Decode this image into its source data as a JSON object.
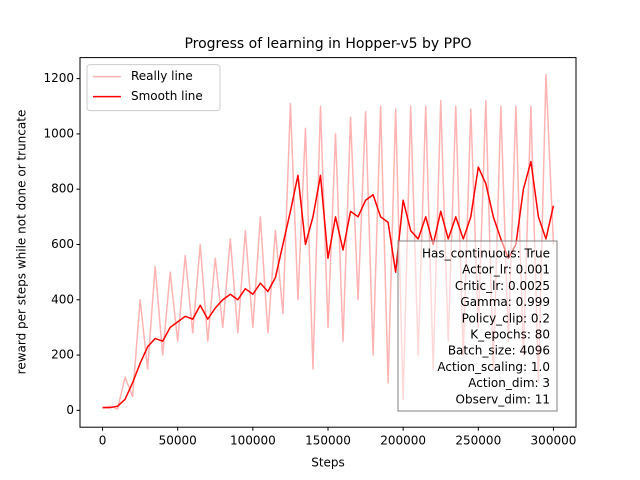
{
  "chart_data": {
    "type": "line",
    "title": "Progress of learning in Hopper-v5 by PPO",
    "x_label": "Steps",
    "y_label": "reward per steps while not done or truncate",
    "x": [
      0,
      5000,
      10000,
      15000,
      20000,
      25000,
      30000,
      35000,
      40000,
      45000,
      50000,
      55000,
      60000,
      65000,
      70000,
      75000,
      80000,
      85000,
      90000,
      95000,
      100000,
      105000,
      110000,
      115000,
      120000,
      125000,
      130000,
      135000,
      140000,
      145000,
      150000,
      155000,
      160000,
      165000,
      170000,
      175000,
      180000,
      185000,
      190000,
      195000,
      200000,
      205000,
      210000,
      215000,
      220000,
      225000,
      230000,
      235000,
      240000,
      245000,
      250000,
      255000,
      260000,
      265000,
      270000,
      275000,
      280000,
      285000,
      290000,
      295000,
      300000
    ],
    "series": [
      {
        "name": "Really line",
        "color": "#ffb3b3",
        "values": [
          10,
          15,
          5,
          120,
          50,
          400,
          150,
          520,
          200,
          500,
          250,
          560,
          280,
          600,
          250,
          550,
          300,
          620,
          280,
          650,
          300,
          700,
          280,
          650,
          350,
          1110,
          400,
          1020,
          150,
          1100,
          300,
          1000,
          250,
          1060,
          400,
          1080,
          200,
          1100,
          100,
          1090,
          40,
          1100,
          200,
          1100,
          150,
          1120,
          250,
          1100,
          200,
          1090,
          300,
          1120,
          150,
          1100,
          250,
          1100,
          200,
          1100,
          100,
          1215,
          600
        ]
      },
      {
        "name": "Smooth line",
        "color": "#ff0000",
        "values": [
          10,
          10,
          15,
          40,
          100,
          170,
          230,
          260,
          250,
          300,
          320,
          340,
          330,
          380,
          330,
          370,
          400,
          420,
          400,
          440,
          420,
          460,
          430,
          480,
          600,
          720,
          850,
          600,
          700,
          850,
          550,
          700,
          580,
          720,
          700,
          760,
          780,
          700,
          680,
          500,
          760,
          650,
          620,
          700,
          600,
          720,
          620,
          700,
          620,
          700,
          880,
          820,
          700,
          620,
          550,
          600,
          800,
          900,
          700,
          620,
          740
        ]
      }
    ],
    "xlim": [
      -15000,
      315000
    ],
    "ylim": [
      -61,
      1276
    ],
    "xticks": [
      0,
      50000,
      100000,
      150000,
      200000,
      250000,
      300000
    ],
    "yticks": [
      0,
      200,
      400,
      600,
      800,
      1000,
      1200
    ],
    "legend": "upper left",
    "annotation": [
      "Has_continuous: True",
      "Actor_lr: 0.001",
      "Critic_lr: 0.0025",
      "Gamma: 0.999",
      "Policy_clip: 0.2",
      "K_epochs: 80",
      "Batch_size: 4096",
      "Action_scaling: 1.0",
      "Action_dim: 3",
      "Observ_dim: 11"
    ]
  }
}
